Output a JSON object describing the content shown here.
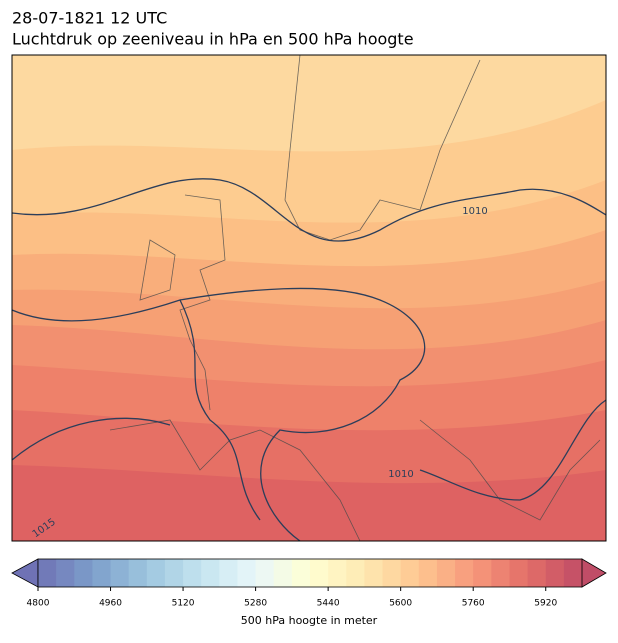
{
  "header": {
    "title": "28-07-1821 12 UTC",
    "subtitle": "Luchtdruk op zeeniveau in hPa en 500 hPa hoogte"
  },
  "map": {
    "contour_labels": [
      "1010",
      "1010",
      "1015"
    ]
  },
  "colorbar": {
    "label": "500 hPa hoogte in meter",
    "lim": [
      4800,
      6000
    ],
    "step": 40,
    "ticks": [
      4800,
      4960,
      5120,
      5280,
      5440,
      5600,
      5760,
      5920
    ]
  }
}
